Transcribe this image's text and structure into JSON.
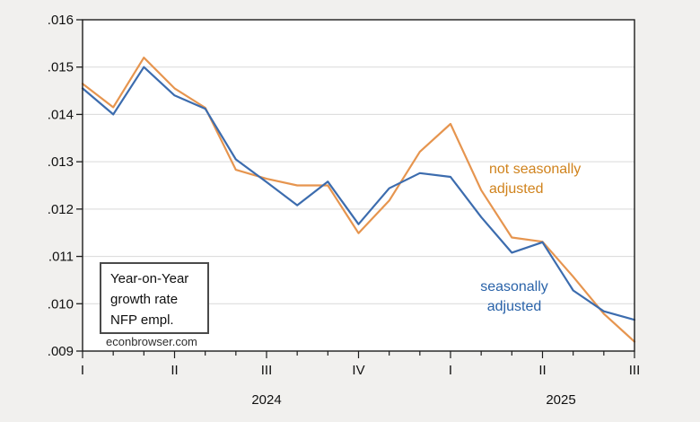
{
  "canvas": {
    "bg_color": "#f1f0ee",
    "plot_bg_color": "#ffffff",
    "frame_color": "#1c1c1c",
    "grid_color": "#d9d9d9",
    "axis_text_color": "#101010"
  },
  "annotation_box": {
    "lines": [
      "Year-on-Year",
      "growth rate",
      "NFP empl."
    ]
  },
  "watermark": "econbrowser.com",
  "series_labels": {
    "nsa": {
      "lines": [
        "not seasonally",
        "adjusted"
      ],
      "color": "#d0831d"
    },
    "sa": {
      "lines": [
        "seasonally",
        "adjusted"
      ],
      "color": "#2a63a9"
    }
  },
  "chart_data": {
    "type": "line",
    "title": "",
    "xlabel": "",
    "ylabel": "",
    "grid": "horizontal",
    "legend_position": "inline-text-labels",
    "x_unit": "month",
    "x": [
      "2024-01",
      "2024-02",
      "2024-03",
      "2024-04",
      "2024-05",
      "2024-06",
      "2024-07",
      "2024-08",
      "2024-09",
      "2024-10",
      "2024-11",
      "2024-12",
      "2025-01",
      "2025-02",
      "2025-03",
      "2025-04",
      "2025-05",
      "2025-06",
      "2025-07"
    ],
    "series": [
      {
        "name": "not seasonally adjusted",
        "color": "#e6954f",
        "values": [
          0.01465,
          0.01415,
          0.0152,
          0.01455,
          0.01414,
          0.01283,
          0.01264,
          0.0125,
          0.0125,
          0.01149,
          0.01218,
          0.01321,
          0.0138,
          0.0124,
          0.0114,
          0.01131,
          0.01057,
          0.00979,
          0.0092
        ]
      },
      {
        "name": "seasonally adjusted",
        "color": "#3c6cae",
        "values": [
          0.01455,
          0.014,
          0.015,
          0.0144,
          0.01412,
          0.01305,
          0.01257,
          0.01208,
          0.01258,
          0.01168,
          0.01244,
          0.01276,
          0.01268,
          0.01183,
          0.01108,
          0.0113,
          0.01028,
          0.00984,
          0.00966
        ]
      }
    ],
    "ylim": [
      0.009,
      0.016
    ],
    "ytick_labels": [
      ".016",
      ".015",
      ".014",
      ".013",
      ".012",
      ".011",
      ".010",
      ".009"
    ],
    "xtick_quarter_labels": [
      "I",
      "II",
      "III",
      "IV",
      "I",
      "II",
      "III"
    ],
    "xtick_quarter_positions": [
      0,
      3,
      6,
      9,
      12,
      15,
      18
    ],
    "year_labels": [
      "2024",
      "2025"
    ]
  }
}
